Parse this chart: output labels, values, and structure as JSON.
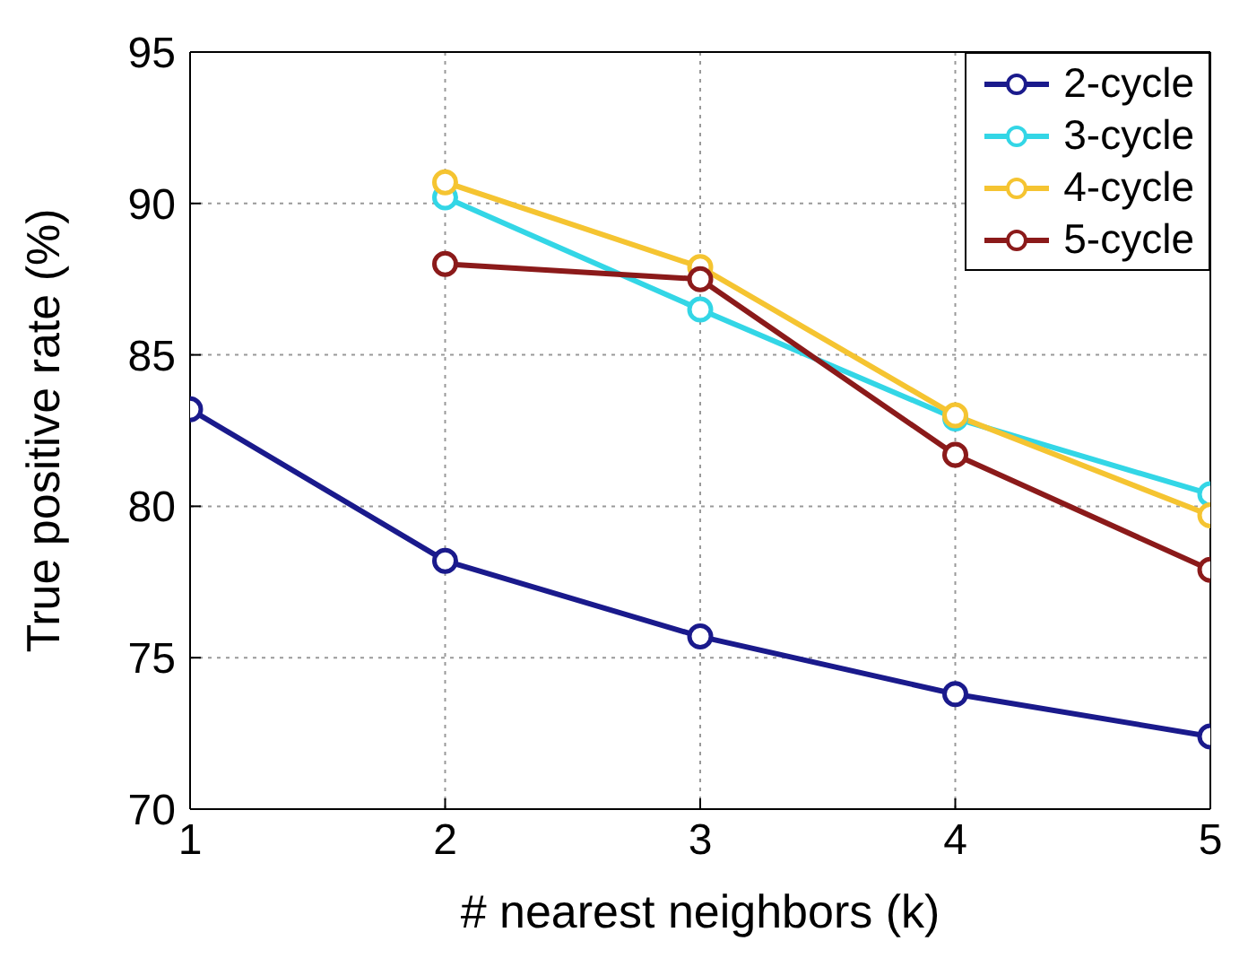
{
  "chart_data": {
    "type": "line",
    "xlabel": "# nearest neighbors (k)",
    "ylabel": "True positive rate (%)",
    "x": [
      1,
      2,
      3,
      4,
      5
    ],
    "series": [
      {
        "name": "2-cycle",
        "color": "#1a1a8c",
        "values": [
          83.2,
          78.2,
          75.7,
          73.8,
          72.4
        ]
      },
      {
        "name": "3-cycle",
        "color": "#33d6e6",
        "values": [
          null,
          90.2,
          86.5,
          82.9,
          80.4
        ]
      },
      {
        "name": "4-cycle",
        "color": "#f5c431",
        "values": [
          null,
          90.7,
          87.9,
          83.0,
          79.7
        ]
      },
      {
        "name": "5-cycle",
        "color": "#8b1a1a",
        "values": [
          null,
          88.0,
          87.5,
          81.7,
          77.9
        ]
      }
    ],
    "xlim": [
      1,
      5
    ],
    "xticks": [
      1,
      2,
      3,
      4,
      5
    ],
    "ylim": [
      70,
      95
    ],
    "yticks": [
      70,
      75,
      80,
      85,
      90,
      95
    ],
    "grid": true,
    "legend": "top right",
    "marker": "circle",
    "line_style": "solid"
  }
}
